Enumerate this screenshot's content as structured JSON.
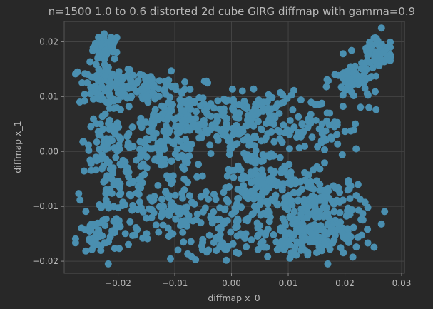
{
  "chart_data": {
    "type": "scatter",
    "title": "n=1500 1.0 to 0.6 distorted 2d cube GIRG diffmap with gamma=0.9",
    "xlabel": "diffmap x_0",
    "ylabel": "diffmap x_1",
    "xlim": [
      -0.0295,
      0.0305
    ],
    "ylim": [
      -0.0222,
      0.0237
    ],
    "xticks": [
      -0.02,
      -0.01,
      0.0,
      0.01,
      0.02,
      0.03
    ],
    "xtick_labels": [
      "−0.02",
      "−0.01",
      "0.00",
      "0.01",
      "0.02",
      "0.03"
    ],
    "yticks": [
      -0.02,
      -0.01,
      0.0,
      0.01,
      0.02
    ],
    "ytick_labels": [
      "−0.02",
      "−0.01",
      "0.00",
      "0.01",
      "0.02"
    ],
    "grid": true,
    "marker_color": "#4a8fb0",
    "n_points": 1500,
    "clusters": [
      {
        "center": [
          -0.022,
          0.019
        ],
        "spread": [
          0.0012,
          0.0012
        ],
        "weight": 45
      },
      {
        "center": [
          -0.022,
          0.012
        ],
        "spread": [
          0.0025,
          0.002
        ],
        "weight": 90
      },
      {
        "center": [
          -0.015,
          0.012
        ],
        "spread": [
          0.003,
          0.0018
        ],
        "weight": 60
      },
      {
        "center": [
          -0.008,
          0.007
        ],
        "spread": [
          0.004,
          0.0025
        ],
        "weight": 120
      },
      {
        "center": [
          -0.022,
          0.002
        ],
        "spread": [
          0.002,
          0.003
        ],
        "weight": 70
      },
      {
        "center": [
          -0.012,
          0.0
        ],
        "spread": [
          0.004,
          0.003
        ],
        "weight": 110
      },
      {
        "center": [
          -0.02,
          -0.008
        ],
        "spread": [
          0.003,
          0.004
        ],
        "weight": 100
      },
      {
        "center": [
          -0.024,
          -0.016
        ],
        "spread": [
          0.0018,
          0.0018
        ],
        "weight": 35
      },
      {
        "center": [
          -0.01,
          -0.011
        ],
        "spread": [
          0.004,
          0.003
        ],
        "weight": 90
      },
      {
        "center": [
          -0.002,
          -0.015
        ],
        "spread": [
          0.003,
          0.0025
        ],
        "weight": 60
      },
      {
        "center": [
          0.0,
          0.004
        ],
        "spread": [
          0.003,
          0.003
        ],
        "weight": 80
      },
      {
        "center": [
          0.006,
          -0.005
        ],
        "spread": [
          0.003,
          0.004
        ],
        "weight": 100
      },
      {
        "center": [
          0.006,
          0.007
        ],
        "spread": [
          0.003,
          0.002
        ],
        "weight": 60
      },
      {
        "center": [
          0.015,
          0.004
        ],
        "spread": [
          0.004,
          0.003
        ],
        "weight": 70
      },
      {
        "center": [
          0.016,
          -0.01
        ],
        "spread": [
          0.004,
          0.003
        ],
        "weight": 150
      },
      {
        "center": [
          0.017,
          -0.016
        ],
        "spread": [
          0.003,
          0.002
        ],
        "weight": 60
      },
      {
        "center": [
          0.022,
          0.013
        ],
        "spread": [
          0.002,
          0.002
        ],
        "weight": 70
      },
      {
        "center": [
          0.026,
          0.018
        ],
        "spread": [
          0.0015,
          0.002
        ],
        "weight": 50
      },
      {
        "center": [
          0.01,
          -0.015
        ],
        "spread": [
          0.004,
          0.002
        ],
        "weight": 80
      },
      {
        "center": [
          0.002,
          -0.008
        ],
        "spread": [
          0.004,
          0.003
        ],
        "weight": 70
      }
    ]
  }
}
